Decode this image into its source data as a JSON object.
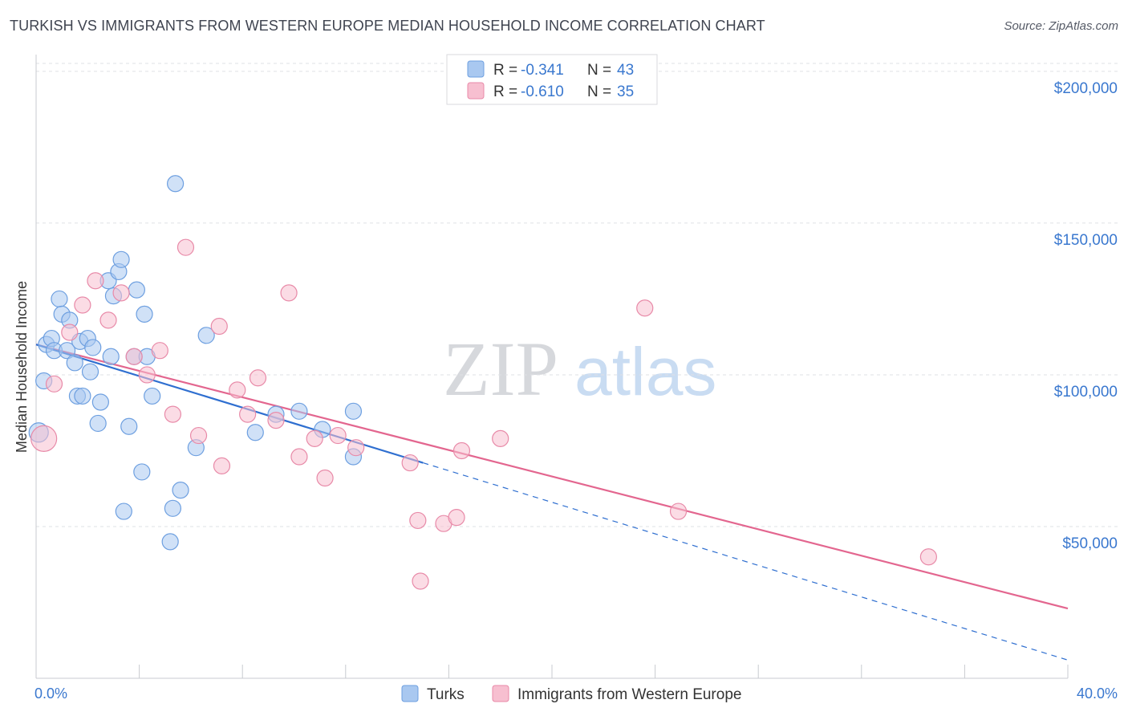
{
  "title": "TURKISH VS IMMIGRANTS FROM WESTERN EUROPE MEDIAN HOUSEHOLD INCOME CORRELATION CHART",
  "source": "Source: ZipAtlas.com",
  "watermark": {
    "zip": "ZIP",
    "atlas": "atlas"
  },
  "legend": {
    "rows": [
      {
        "r_label": "R =",
        "r_value": "-0.341",
        "n_label": "N =",
        "n_value": "43",
        "color": "#a9c8f0",
        "stroke": "#6d9fe0"
      },
      {
        "r_label": "R =",
        "r_value": "-0.610",
        "n_label": "N =",
        "n_value": "35",
        "color": "#f7bfd0",
        "stroke": "#e88aa8"
      }
    ]
  },
  "bottom_legend": [
    {
      "label": "Turks",
      "color": "#a9c8f0",
      "stroke": "#6d9fe0"
    },
    {
      "label": "Immigrants from Western Europe",
      "color": "#f7bfd0",
      "stroke": "#e88aa8"
    }
  ],
  "chart_data": {
    "type": "scatter",
    "title": "TURKISH VS IMMIGRANTS FROM WESTERN EUROPE MEDIAN HOUSEHOLD INCOME CORRELATION CHART",
    "xlabel": "",
    "ylabel": "Median Household Income",
    "xlim": [
      0,
      40
    ],
    "ylim": [
      0,
      205000
    ],
    "x_tick_labels": [
      "0.0%",
      "40.0%"
    ],
    "y_ticks": [
      {
        "value": 50000,
        "label": "$50,000"
      },
      {
        "value": 100000,
        "label": "$100,000"
      },
      {
        "value": 150000,
        "label": "$150,000"
      },
      {
        "value": 200000,
        "label": "$200,000"
      }
    ],
    "series": [
      {
        "name": "Turks",
        "color": "#a9c8f0",
        "stroke": "#6d9fe0",
        "line_color": "#2f6fd0",
        "trend": {
          "x0": 0,
          "y0": 110000,
          "x1": 15,
          "y1": 71000,
          "x_ext": 40,
          "y_ext": 6000
        },
        "points": [
          [
            0.1,
            81000,
            12
          ],
          [
            0.3,
            98000,
            10
          ],
          [
            0.4,
            110000,
            10
          ],
          [
            0.6,
            112000,
            10
          ],
          [
            0.7,
            108000,
            10
          ],
          [
            0.9,
            125000,
            10
          ],
          [
            1.0,
            120000,
            10
          ],
          [
            1.2,
            108000,
            10
          ],
          [
            1.3,
            118000,
            10
          ],
          [
            1.5,
            104000,
            10
          ],
          [
            1.6,
            93000,
            10
          ],
          [
            1.7,
            111000,
            10
          ],
          [
            1.8,
            93000,
            10
          ],
          [
            2.0,
            112000,
            10
          ],
          [
            2.1,
            101000,
            10
          ],
          [
            2.2,
            109000,
            10
          ],
          [
            2.4,
            84000,
            10
          ],
          [
            2.5,
            91000,
            10
          ],
          [
            2.8,
            131000,
            10
          ],
          [
            2.9,
            106000,
            10
          ],
          [
            3.0,
            126000,
            10
          ],
          [
            3.2,
            134000,
            10
          ],
          [
            3.3,
            138000,
            10
          ],
          [
            3.4,
            55000,
            10
          ],
          [
            3.6,
            83000,
            10
          ],
          [
            3.8,
            106000,
            10
          ],
          [
            3.9,
            128000,
            10
          ],
          [
            4.1,
            68000,
            10
          ],
          [
            4.2,
            120000,
            10
          ],
          [
            4.3,
            106000,
            10
          ],
          [
            4.5,
            93000,
            10
          ],
          [
            5.2,
            45000,
            10
          ],
          [
            5.3,
            56000,
            10
          ],
          [
            5.4,
            163000,
            10
          ],
          [
            5.6,
            62000,
            10
          ],
          [
            6.2,
            76000,
            10
          ],
          [
            6.6,
            113000,
            10
          ],
          [
            8.5,
            81000,
            10
          ],
          [
            9.3,
            87000,
            10
          ],
          [
            10.2,
            88000,
            10
          ],
          [
            11.1,
            82000,
            10
          ],
          [
            12.3,
            73000,
            10
          ],
          [
            12.3,
            88000,
            10
          ]
        ]
      },
      {
        "name": "Immigrants from Western Europe",
        "color": "#f7bfd0",
        "stroke": "#e88aa8",
        "line_color": "#e3668f",
        "trend": {
          "x0": 0,
          "y0": 110000,
          "x1": 40,
          "y1": 23000
        },
        "points": [
          [
            0.3,
            79000,
            16
          ],
          [
            0.7,
            97000,
            10
          ],
          [
            1.3,
            114000,
            10
          ],
          [
            1.8,
            123000,
            10
          ],
          [
            2.3,
            131000,
            10
          ],
          [
            2.8,
            118000,
            10
          ],
          [
            3.3,
            127000,
            10
          ],
          [
            3.8,
            106000,
            10
          ],
          [
            4.3,
            100000,
            10
          ],
          [
            4.8,
            108000,
            10
          ],
          [
            5.3,
            87000,
            10
          ],
          [
            5.8,
            142000,
            10
          ],
          [
            6.3,
            80000,
            10
          ],
          [
            7.1,
            116000,
            10
          ],
          [
            7.2,
            70000,
            10
          ],
          [
            7.8,
            95000,
            10
          ],
          [
            8.2,
            87000,
            10
          ],
          [
            8.6,
            99000,
            10
          ],
          [
            9.3,
            85000,
            10
          ],
          [
            9.8,
            127000,
            10
          ],
          [
            10.2,
            73000,
            10
          ],
          [
            10.8,
            79000,
            10
          ],
          [
            11.2,
            66000,
            10
          ],
          [
            11.7,
            80000,
            10
          ],
          [
            12.4,
            76000,
            10
          ],
          [
            14.5,
            71000,
            10
          ],
          [
            14.8,
            52000,
            10
          ],
          [
            14.9,
            32000,
            10
          ],
          [
            15.8,
            51000,
            10
          ],
          [
            16.3,
            53000,
            10
          ],
          [
            16.5,
            75000,
            10
          ],
          [
            18.0,
            79000,
            10
          ],
          [
            23.6,
            122000,
            10
          ],
          [
            24.9,
            55000,
            10
          ],
          [
            34.6,
            40000,
            10
          ]
        ]
      }
    ]
  }
}
